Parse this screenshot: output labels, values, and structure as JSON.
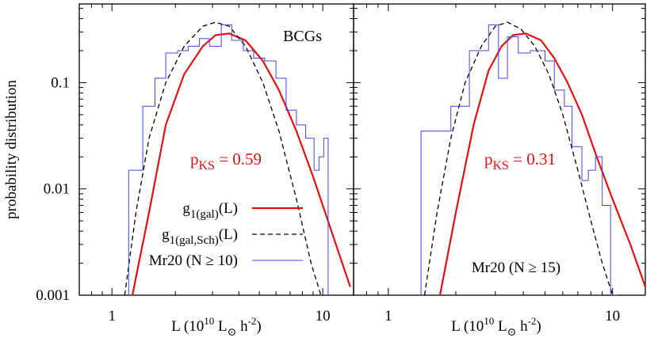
{
  "y_axis_label": "probability distribution",
  "x_axis_label": {
    "main": "L (10",
    "exp1": "10",
    "l": " L",
    "sun": "⊙",
    "h": " h",
    "exp2": "-2",
    "close": ")"
  },
  "colors": {
    "g1_gal": "#e01010",
    "g1_gal_sch": "#000000",
    "histogram": "#4444dd",
    "pks_text": "#e01010",
    "axes": "#000000"
  },
  "chart_data": [
    {
      "type": "line",
      "xscale": "log",
      "yscale": "log",
      "xlim": [
        0.7,
        14
      ],
      "ylim": [
        0.001,
        0.55
      ],
      "xticks": [
        {
          "value": 1,
          "label": "1"
        },
        {
          "value": 10,
          "label": "10"
        }
      ],
      "yticks": [
        {
          "value": 0.001,
          "label": "0.001"
        },
        {
          "value": 0.01,
          "label": "0.01"
        },
        {
          "value": 0.1,
          "label": "0.1"
        }
      ],
      "label": "BCGs",
      "pks": {
        "p": "p",
        "sub": "KS",
        "value": " = 0.59"
      },
      "legend": {
        "placement": "bottom-center",
        "entries": [
          {
            "series": "g1_gal",
            "base": "g",
            "sub": "1(gal)",
            "tail": "(L)"
          },
          {
            "series": "g1_gal_sch",
            "base": "g",
            "sub": "1(gal,Sch)",
            "tail": "(L)"
          },
          {
            "series": "histogram",
            "base": "Mr20 (N ≥ 10)",
            "sub": "",
            "tail": ""
          }
        ]
      },
      "series": [
        {
          "id": "g1_gal",
          "style": "solid",
          "x": [
            1.25,
            1.5,
            1.8,
            2.2,
            2.7,
            3.1,
            3.6,
            4.3,
            5.2,
            6.2,
            7.5,
            9.0,
            11.0,
            13.5
          ],
          "y": [
            0.001,
            0.006,
            0.04,
            0.12,
            0.22,
            0.28,
            0.29,
            0.25,
            0.16,
            0.085,
            0.035,
            0.013,
            0.004,
            0.0012
          ]
        },
        {
          "id": "g1_gal_sch",
          "style": "dashed",
          "x": [
            1.15,
            1.3,
            1.5,
            1.8,
            2.2,
            2.7,
            3.1,
            3.6,
            4.3,
            5.2,
            6.2,
            7.5,
            8.8,
            9.8
          ],
          "y": [
            0.001,
            0.006,
            0.03,
            0.1,
            0.22,
            0.34,
            0.37,
            0.34,
            0.22,
            0.1,
            0.035,
            0.008,
            0.002,
            0.001
          ]
        },
        {
          "id": "histogram",
          "style": "step",
          "edges": [
            1.2,
            1.4,
            1.6,
            1.8,
            2.05,
            2.3,
            2.6,
            2.9,
            3.3,
            3.7,
            4.2,
            4.7,
            5.3,
            6.0,
            6.7,
            7.5,
            8.3,
            9.1,
            9.6,
            10.1,
            10.6
          ],
          "y": [
            0.015,
            0.06,
            0.11,
            0.19,
            0.2,
            0.22,
            0.26,
            0.22,
            0.35,
            0.25,
            0.2,
            0.17,
            0.16,
            0.11,
            0.055,
            0.04,
            0.03,
            0.015,
            0.02,
            0.03
          ]
        }
      ]
    },
    {
      "type": "line",
      "xscale": "log",
      "yscale": "log",
      "xlim": [
        0.7,
        14
      ],
      "ylim": [
        0.001,
        0.55
      ],
      "xticks": [
        {
          "value": 1,
          "label": "1"
        },
        {
          "value": 10,
          "label": "10"
        }
      ],
      "yticks": [],
      "pks": {
        "p": "p",
        "sub": "KS",
        "value": " = 0.31"
      },
      "legend": {
        "placement": "bottom-center",
        "entries": [
          {
            "series": "histogram",
            "base": "Mr20 (N ≥ 15)",
            "sub": "",
            "tail": ""
          }
        ]
      },
      "series": [
        {
          "id": "g1_gal",
          "style": "solid",
          "x": [
            1.7,
            2.0,
            2.4,
            2.8,
            3.2,
            3.6,
            4.1,
            4.8,
            5.5,
            6.3,
            7.3,
            8.5,
            10.0,
            12.0,
            14.0
          ],
          "y": [
            0.001,
            0.006,
            0.04,
            0.13,
            0.22,
            0.28,
            0.29,
            0.25,
            0.17,
            0.1,
            0.05,
            0.02,
            0.008,
            0.003,
            0.0012
          ]
        },
        {
          "id": "g1_gal_sch",
          "style": "dashed",
          "x": [
            1.45,
            1.65,
            1.9,
            2.2,
            2.6,
            3.0,
            3.4,
            3.9,
            4.5,
            5.2,
            6.0,
            7.0,
            8.0,
            9.0,
            10.0
          ],
          "y": [
            0.001,
            0.006,
            0.03,
            0.1,
            0.22,
            0.34,
            0.37,
            0.32,
            0.22,
            0.12,
            0.05,
            0.015,
            0.005,
            0.002,
            0.001
          ]
        },
        {
          "id": "histogram",
          "style": "step",
          "edges": [
            1.4,
            1.9,
            2.3,
            2.8,
            3.1,
            3.4,
            3.8,
            4.3,
            5.0,
            5.5,
            6.1,
            6.6,
            7.3,
            7.8,
            8.4,
            9.0,
            9.8,
            10.5
          ],
          "y": [
            0.035,
            0.06,
            0.2,
            0.35,
            0.11,
            0.27,
            0.19,
            0.2,
            0.16,
            0.085,
            0.06,
            0.025,
            0.012,
            0.015,
            0.02,
            0.007,
            0.001
          ]
        }
      ]
    }
  ]
}
